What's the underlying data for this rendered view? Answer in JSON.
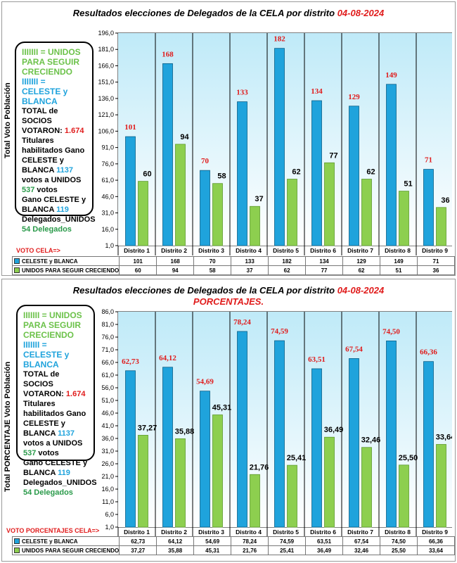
{
  "colors": {
    "celeste": "#1fa3dc",
    "unidos": "#8dcf4f",
    "accent_red": "#e01b1b",
    "plot_bg": "#d9f3fb"
  },
  "chart_data": [
    {
      "type": "bar",
      "title": "Resultados  elecciones  de Delegados  de la CELA por distrito",
      "date": "04-08-2024",
      "ylabel": "Total Voto Población",
      "ylim": [
        1.0,
        196.0
      ],
      "yticks": [
        "196,0",
        "181,0",
        "166,0",
        "151,0",
        "136,0",
        "121,0",
        "106,0",
        "91,0",
        "76,0",
        "61,0",
        "46,0",
        "31,0",
        "16,0",
        "1,0"
      ],
      "categories": [
        "Distrito 1",
        "Distrito 2",
        "Distrito 3",
        "Distrito 4",
        "Distrito 5",
        "Distrito 6",
        "Distrito 7",
        "Distrito 8",
        "Distrito 9"
      ],
      "row_caption": "VOTO CELA=>",
      "series": [
        {
          "name": "CELESTE y BLANCA",
          "values": [
            101,
            168,
            70,
            133,
            182,
            134,
            129,
            149,
            71
          ],
          "labels": [
            "101",
            "168",
            "70",
            "133",
            "182",
            "134",
            "129",
            "149",
            "71"
          ]
        },
        {
          "name": "UNIDOS PARA SEGUIR CRECIENDO",
          "values": [
            60,
            94,
            58,
            37,
            62,
            77,
            62,
            51,
            36
          ],
          "labels": [
            "60",
            "94",
            "58",
            "37",
            "62",
            "77",
            "62",
            "51",
            "36"
          ]
        }
      ],
      "legend_box": {
        "green_key": "IIIIIII = UNIDOS PARA SEGUIR CRECIENDO",
        "blue_key": "IIIIIII = CELESTE y BLANCA",
        "socios_text": "TOTAL de SOCIOS VOTARON:",
        "socios_value": "1.674",
        "hab_text": "Titulares habilitados Gano CELESTE y BLANCA",
        "hab_value1": "1137",
        "hab_mid": "votos a UNIDOS",
        "hab_value2": "537",
        "hab_end": "votos",
        "gano_text": "Gano CELESTE y BLANCA",
        "gano_value": "119",
        "del_text": "Delegados_UNIDOS",
        "del_value": "54 Delegados"
      }
    },
    {
      "type": "bar",
      "title": "Resultados  elecciones  de Delegados  de la CELA por distrito",
      "date": "04-08-2024",
      "subtitle": "PORCENTAJES.",
      "ylabel": "Total PORCENTAJE Voto Población",
      "ylim": [
        1.0,
        86.0
      ],
      "yticks": [
        "86,0",
        "81,0",
        "76,0",
        "71,0",
        "66,0",
        "61,0",
        "56,0",
        "51,0",
        "46,0",
        "41,0",
        "36,0",
        "31,0",
        "26,0",
        "21,0",
        "16,0",
        "11,0",
        "6,0",
        "1,0"
      ],
      "categories": [
        "Distrito 1",
        "Distrito 2",
        "Distrito 3",
        "Distrito 4",
        "Distrito 5",
        "Distrito 6",
        "Distrito 7",
        "Distrito 8",
        "Distrito 9"
      ],
      "row_caption": "VOTO PORCENTAJES  CELA=>",
      "series": [
        {
          "name": "CELESTE y BLANCA",
          "values": [
            62.73,
            64.12,
            54.69,
            78.24,
            74.59,
            63.51,
            67.54,
            74.5,
            66.36
          ],
          "labels": [
            "62,73",
            "64,12",
            "54,69",
            "78,24",
            "74,59",
            "63,51",
            "67,54",
            "74,50",
            "66,36"
          ]
        },
        {
          "name": "UNIDOS PARA SEGUIR CRECIENDO",
          "values": [
            37.27,
            35.88,
            45.31,
            21.76,
            25.41,
            36.49,
            32.46,
            25.5,
            33.64
          ],
          "labels": [
            "37,27",
            "35,88",
            "45,31",
            "21,76",
            "25,41",
            "36,49",
            "32,46",
            "25,50",
            "33,64"
          ]
        }
      ],
      "legend_box": {
        "green_key": "IIIIIII = UNIDOS PARA SEGUIR CRECIENDO",
        "blue_key": "IIIIIII = CELESTE y BLANCA",
        "socios_text": "TOTAL de SOCIOS VOTARON:",
        "socios_value": "1.674",
        "hab_text": "Titulares habilitados Gano CELESTE y BLANCA",
        "hab_value1": "1137",
        "hab_mid": "votos a UNIDOS",
        "hab_value2": "537",
        "hab_end": "votos",
        "gano_text": "Gano CELESTE y BLANCA",
        "gano_value": "119",
        "del_text": "Delegados_UNIDOS",
        "del_value": "54 Delegados"
      }
    }
  ]
}
